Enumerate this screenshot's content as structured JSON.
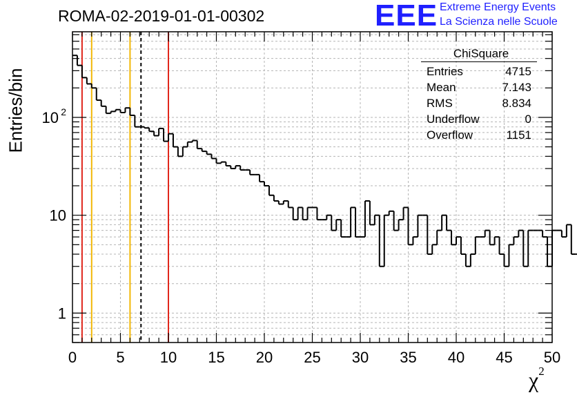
{
  "title": "ROMA-02-2019-01-01-00302",
  "logo": {
    "text": "EEE",
    "line1": "Extreme Energy Events",
    "line2": "La Scienza nelle Scuole",
    "color": "#1f1fff"
  },
  "stats": {
    "title": "ChiSquare",
    "rows": [
      {
        "label": "Entries",
        "value": "4715"
      },
      {
        "label": "Mean",
        "value": "7.143"
      },
      {
        "label": "RMS",
        "value": "8.834"
      },
      {
        "label": "Underflow",
        "value": "0"
      },
      {
        "label": "Overflow",
        "value": "1151"
      }
    ]
  },
  "chart_data": {
    "type": "bar",
    "title": "ROMA-02-2019-01-01-00302",
    "xlabel": "χ",
    "xlabel_sup": "2",
    "ylabel": "Entries/bin",
    "yscale": "log",
    "xlim": [
      0,
      50
    ],
    "ylim": [
      0.5,
      750
    ],
    "grid": true,
    "x_ticks": [
      0,
      5,
      10,
      15,
      20,
      25,
      30,
      35,
      40,
      45,
      50
    ],
    "y_ticks": [
      {
        "value": 1,
        "label": "1"
      },
      {
        "value": 10,
        "label": "10"
      },
      {
        "value": 100,
        "label": "10",
        "exp": "2"
      }
    ],
    "bin_width": 0.5,
    "bin_start": 0,
    "values": [
      430,
      340,
      255,
      220,
      200,
      150,
      130,
      110,
      115,
      120,
      112,
      125,
      105,
      80,
      80,
      78,
      72,
      65,
      77,
      57,
      68,
      50,
      40,
      50,
      56,
      58,
      48,
      45,
      42,
      38,
      34,
      35,
      32,
      30,
      32,
      29,
      29,
      26,
      26,
      22,
      20,
      16,
      14,
      13,
      14,
      12,
      9,
      12,
      9,
      12,
      12,
      9,
      9,
      10,
      7,
      9,
      6,
      6,
      12,
      6,
      6,
      14,
      8,
      10,
      3,
      10,
      11,
      7,
      9,
      12,
      5,
      6,
      10,
      10,
      4,
      5,
      7,
      10,
      7,
      5,
      6,
      4,
      3,
      4,
      6,
      6,
      7,
      5,
      6,
      4,
      3,
      5,
      6,
      7,
      3,
      7,
      7,
      7,
      6,
      3,
      7,
      7,
      6,
      8,
      4,
      4,
      8,
      3,
      7,
      6,
      5,
      7,
      6,
      2,
      6,
      4,
      7,
      3,
      7,
      10,
      3,
      3,
      3,
      3,
      2,
      3,
      2,
      2,
      2,
      3,
      4,
      3,
      3,
      2,
      2,
      2,
      3,
      4,
      3,
      3,
      3,
      2,
      3,
      2,
      0.45,
      2,
      2,
      2,
      3,
      2,
      2,
      2,
      2,
      2,
      4,
      2,
      2,
      2,
      2,
      2,
      2,
      1.2,
      1.8,
      3,
      2,
      2,
      1.8,
      1,
      1.2,
      1.5,
      1.5,
      2,
      1.5,
      0.45,
      1,
      4,
      2,
      1.5,
      1.2,
      3,
      1.8,
      1.2,
      1.5,
      1.8,
      1.5,
      2,
      1.7,
      1.5,
      1.2,
      2,
      1.6,
      1.5,
      2,
      2,
      1.5,
      1.5,
      2,
      1.5,
      1.8,
      1.5,
      2,
      1.5
    ],
    "vertical_lines": [
      {
        "x": 1,
        "color": "#e0261b",
        "style": "solid"
      },
      {
        "x": 2,
        "color": "#f2b705",
        "style": "solid"
      },
      {
        "x": 6,
        "color": "#f2b705",
        "style": "solid"
      },
      {
        "x": 7.143,
        "color": "#000000",
        "style": "dashed"
      },
      {
        "x": 10,
        "color": "#e0261b",
        "style": "solid"
      }
    ]
  }
}
